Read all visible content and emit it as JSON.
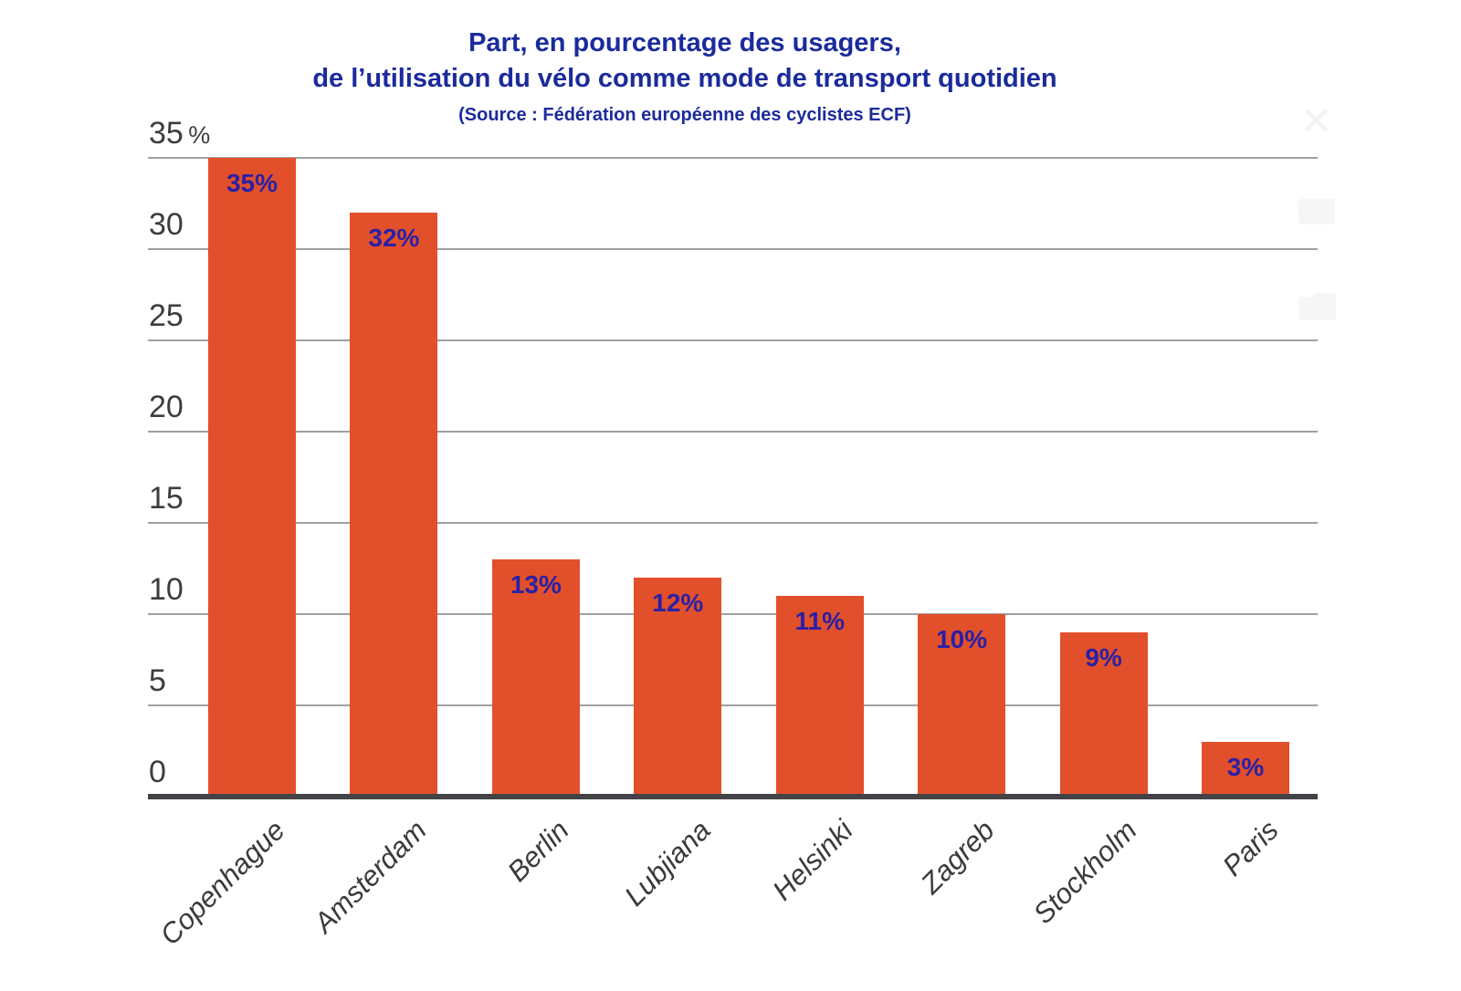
{
  "title": {
    "line1": "Part, en pourcentage des usagers,",
    "line2": "de l’utilisation du vélo comme mode de transport quotidien",
    "source": "(Source : Fédération européenne des cyclistes ECF)"
  },
  "colors": {
    "bar": "#e2502b",
    "title_blue": "#1b2b9b",
    "value_label_blue": "#2a20a5",
    "axis_text": "#3d3d41",
    "category_text": "#3a3a3e",
    "gridline": "#a0a0a3",
    "baseline": "#434347"
  },
  "chart_data": {
    "type": "bar",
    "title": "Part, en pourcentage des usagers, de l’utilisation du vélo comme mode de transport quotidien",
    "subtitle": "(Source : Fédération européenne des cyclistes ECF)",
    "categories": [
      "Copenhague",
      "Amsterdam",
      "Berlin",
      "Lubjiana",
      "Helsinki",
      "Zagreb",
      "Stockholm",
      "Paris"
    ],
    "values": [
      35,
      32,
      13,
      12,
      11,
      10,
      9,
      3
    ],
    "value_labels": [
      "35%",
      "32%",
      "13%",
      "12%",
      "11%",
      "10%",
      "9%",
      "3%"
    ],
    "xlabel": "",
    "ylabel": "",
    "ylim": [
      0,
      35
    ],
    "grid": true,
    "legend": "none",
    "y_ticks": [
      {
        "value": 0,
        "label": "0"
      },
      {
        "value": 5,
        "label": "5"
      },
      {
        "value": 10,
        "label": "10"
      },
      {
        "value": 15,
        "label": "15"
      },
      {
        "value": 20,
        "label": "20"
      },
      {
        "value": 25,
        "label": "25"
      },
      {
        "value": 30,
        "label": "30"
      },
      {
        "value": 35,
        "label": "35 %"
      }
    ]
  },
  "ghost_icons": [
    {
      "name": "faint-close-icon",
      "glyph": "✕"
    },
    {
      "name": "faint-rect-icon",
      "glyph": ""
    },
    {
      "name": "faint-folder-icon",
      "glyph": ""
    }
  ]
}
